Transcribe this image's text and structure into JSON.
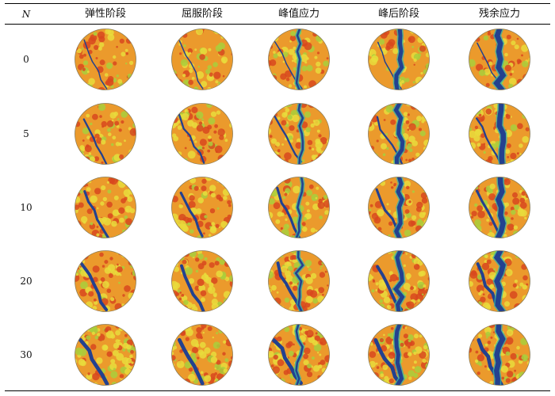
{
  "table": {
    "corner_label": "N",
    "columns": [
      "弹性阶段",
      "屈服阶段",
      "峰值应力",
      "峰后阶段",
      "残余应力"
    ],
    "rows": [
      "0",
      "5",
      "10",
      "20",
      "30"
    ]
  },
  "colors": {
    "background_orange": "#eb9a2c",
    "patch_red": "#d8481e",
    "patch_yellow": "#e9dc3c",
    "patch_lime": "#a9cf3c",
    "fracture_blue": "#23418f",
    "fracture_cyan": "#36b2a6",
    "edge": "#8a7a55"
  }
}
